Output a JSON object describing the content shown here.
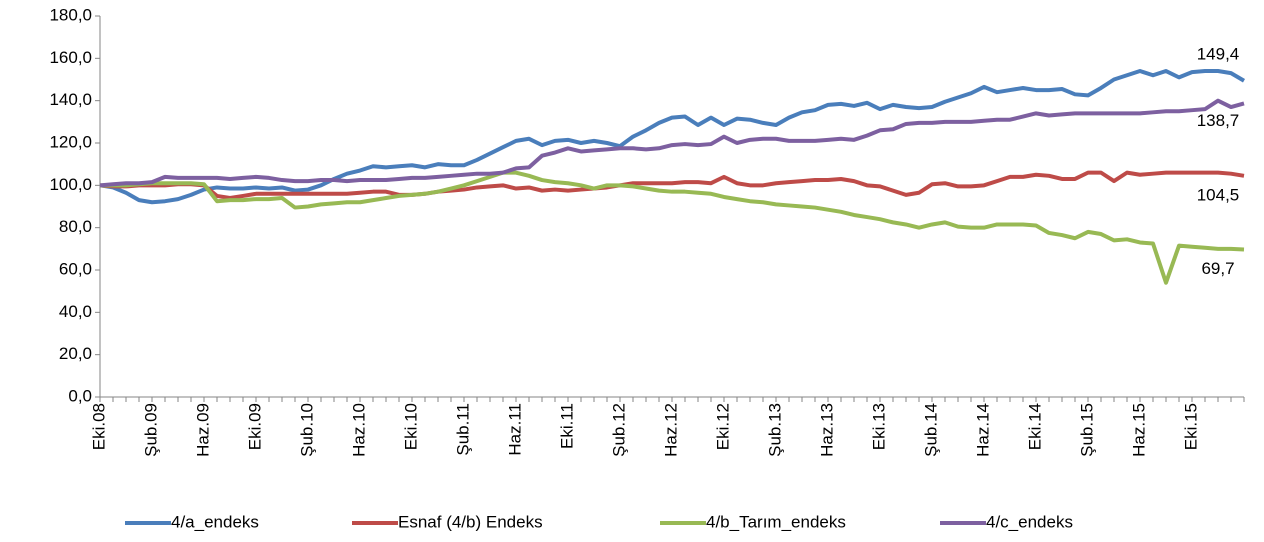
{
  "chart_data": {
    "type": "line",
    "categories": [
      "Eki.08",
      null,
      null,
      null,
      "Şub.09",
      null,
      null,
      null,
      "Haz.09",
      null,
      null,
      null,
      "Eki.09",
      null,
      null,
      null,
      "Şub.10",
      null,
      null,
      null,
      "Haz.10",
      null,
      null,
      null,
      "Eki.10",
      null,
      null,
      null,
      "Şub.11",
      null,
      null,
      null,
      "Haz.11",
      null,
      null,
      null,
      "Eki.11",
      null,
      null,
      null,
      "Şub.12",
      null,
      null,
      null,
      "Haz.12",
      null,
      null,
      null,
      "Eki.12",
      null,
      null,
      null,
      "Şub.13",
      null,
      null,
      null,
      "Haz.13",
      null,
      null,
      null,
      "Eki.13",
      null,
      null,
      null,
      "Şub.14",
      null,
      null,
      null,
      "Haz.14",
      null,
      null,
      null,
      "Eki.14",
      null,
      null,
      null,
      "Şub.15",
      null,
      null,
      null,
      "Haz.15",
      null,
      null,
      null,
      "Eki.15",
      null,
      null,
      null,
      null
    ],
    "series": [
      {
        "name": "4/a_endeks",
        "color": "#4a7ebb",
        "values": [
          100,
          99,
          96.5,
          93,
          92,
          92.5,
          93.5,
          95.5,
          98,
          99,
          98.5,
          98.5,
          99,
          98.5,
          99,
          97.5,
          98,
          100,
          103,
          105.5,
          107,
          109,
          108.5,
          109,
          109.5,
          108.5,
          110,
          109.5,
          109.5,
          112,
          115,
          118,
          121,
          122,
          119,
          121,
          121.5,
          120,
          121,
          120,
          118.5,
          123,
          126,
          129.5,
          132,
          132.5,
          128.5,
          132,
          128.5,
          131.5,
          131,
          129.5,
          128.5,
          132,
          134.5,
          135.5,
          138,
          138.5,
          137.5,
          139,
          136,
          138,
          137,
          136.5,
          137,
          139.5,
          141.5,
          143.5,
          146.5,
          144,
          145,
          146,
          145,
          145,
          145.5,
          143,
          142.5,
          146,
          150,
          152,
          154,
          152,
          154,
          151,
          153.5,
          154,
          154,
          153,
          149.4
        ],
        "value_labels": [
          null,
          null,
          null,
          null,
          null,
          null,
          null,
          null,
          null,
          null,
          null,
          null,
          null,
          null,
          null,
          null,
          null,
          null,
          null,
          null,
          null,
          null,
          null,
          null,
          null,
          null,
          null,
          null,
          null,
          null,
          null,
          null,
          null,
          null,
          null,
          null,
          null,
          null,
          null,
          null,
          null,
          null,
          null,
          null,
          null,
          null,
          null,
          null,
          null,
          null,
          null,
          null,
          null,
          null,
          null,
          null,
          null,
          null,
          null,
          null,
          null,
          null,
          null,
          null,
          null,
          null,
          null,
          null,
          null,
          null,
          null,
          null,
          null,
          null,
          null,
          null,
          null,
          null,
          null,
          null,
          null,
          null,
          null,
          null,
          null,
          null,
          null,
          null,
          "149,4"
        ]
      },
      {
        "name": "Esnaf (4/b) Endeks",
        "color": "#be4b48",
        "values": [
          100,
          99.5,
          99.5,
          100,
          100,
          100,
          100.5,
          100.5,
          100,
          95,
          94,
          95,
          96,
          96,
          96,
          96,
          96,
          96,
          96,
          96,
          96.5,
          97,
          97,
          95.5,
          95.5,
          96,
          97,
          97.5,
          98,
          99,
          99.5,
          100,
          98.5,
          99,
          97.5,
          98,
          97.5,
          98,
          98.5,
          99,
          100,
          101,
          101,
          101,
          101,
          101.5,
          101.5,
          101,
          104,
          101,
          100,
          100,
          101,
          101.5,
          102,
          102.5,
          102.5,
          103,
          102,
          100,
          99.5,
          97.5,
          95.5,
          96.5,
          100.5,
          101,
          99.5,
          99.5,
          100,
          102,
          104,
          104,
          105,
          104.5,
          103,
          103,
          106,
          106,
          102,
          106,
          105,
          105.5,
          106,
          106,
          106,
          106,
          106,
          105.5,
          104.5
        ],
        "value_labels": [
          null,
          null,
          null,
          null,
          null,
          null,
          null,
          null,
          null,
          null,
          null,
          null,
          null,
          null,
          null,
          null,
          null,
          null,
          null,
          null,
          null,
          null,
          null,
          null,
          null,
          null,
          null,
          null,
          null,
          null,
          null,
          null,
          null,
          null,
          null,
          null,
          null,
          null,
          null,
          null,
          null,
          null,
          null,
          null,
          null,
          null,
          null,
          null,
          null,
          null,
          null,
          null,
          null,
          null,
          null,
          null,
          null,
          null,
          null,
          null,
          null,
          null,
          null,
          null,
          null,
          null,
          null,
          null,
          null,
          null,
          null,
          null,
          null,
          null,
          null,
          null,
          null,
          null,
          null,
          null,
          null,
          null,
          null,
          null,
          null,
          null,
          null,
          null,
          "104,5"
        ]
      },
      {
        "name": "4/b_Tarım_endeks",
        "color": "#98b954",
        "values": [
          100,
          100,
          100,
          100.5,
          101,
          101,
          101,
          101,
          100.5,
          92.5,
          93,
          93,
          93.5,
          93.5,
          94,
          89.5,
          90,
          91,
          91.5,
          92,
          92,
          93,
          94,
          95,
          95.5,
          96,
          97,
          98.5,
          100,
          102,
          104,
          106,
          106,
          104.5,
          102.5,
          101.5,
          101,
          100,
          98.5,
          100,
          100,
          99.5,
          98.5,
          97.5,
          97,
          97,
          96.5,
          96,
          94.5,
          93.5,
          92.5,
          92,
          91,
          90.5,
          90,
          89.5,
          88.5,
          87.5,
          86,
          85,
          84,
          82.5,
          81.5,
          80,
          81.5,
          82.5,
          80.5,
          80,
          80,
          81.5,
          81.5,
          81.5,
          81,
          77.5,
          76.5,
          75,
          78,
          77,
          74,
          74.5,
          73,
          72.5,
          54,
          71.5,
          71,
          70.5,
          70,
          70,
          69.7
        ],
        "value_labels": [
          null,
          null,
          null,
          null,
          null,
          null,
          null,
          null,
          null,
          null,
          null,
          null,
          null,
          null,
          null,
          null,
          null,
          null,
          null,
          null,
          null,
          null,
          null,
          null,
          null,
          null,
          null,
          null,
          null,
          null,
          null,
          null,
          null,
          null,
          null,
          null,
          null,
          null,
          null,
          null,
          null,
          null,
          null,
          null,
          null,
          null,
          null,
          null,
          null,
          null,
          null,
          null,
          null,
          null,
          null,
          null,
          null,
          null,
          null,
          null,
          null,
          null,
          null,
          null,
          null,
          null,
          null,
          null,
          null,
          null,
          null,
          null,
          null,
          null,
          null,
          null,
          null,
          null,
          null,
          null,
          null,
          null,
          null,
          null,
          null,
          null,
          null,
          null,
          "69,7"
        ]
      },
      {
        "name": "4/c_endeks",
        "color": "#7d60a0",
        "values": [
          100,
          100.5,
          101,
          101,
          101.5,
          104,
          103.5,
          103.5,
          103.5,
          103.5,
          103,
          103.5,
          104,
          103.5,
          102.5,
          102,
          102,
          102.5,
          102.5,
          102,
          102.5,
          102.5,
          102.5,
          103,
          103.5,
          103.5,
          104,
          104.5,
          105,
          105.5,
          105.5,
          106,
          108,
          108.5,
          114,
          115.5,
          117.5,
          116,
          116.5,
          117,
          117.5,
          117.5,
          117,
          117.5,
          119,
          119.5,
          119,
          119.5,
          123,
          120,
          121.5,
          122,
          122,
          121,
          121,
          121,
          121.5,
          122,
          121.5,
          123.5,
          126,
          126.5,
          129,
          129.5,
          129.5,
          130,
          130,
          130,
          130.5,
          131,
          131,
          132.5,
          134,
          133,
          133.5,
          134,
          134,
          134,
          134,
          134,
          134,
          134.5,
          135,
          135,
          135.5,
          136,
          140,
          137,
          138.7
        ],
        "value_labels": [
          null,
          null,
          null,
          null,
          null,
          null,
          null,
          null,
          null,
          null,
          null,
          null,
          null,
          null,
          null,
          null,
          null,
          null,
          null,
          null,
          null,
          null,
          null,
          null,
          null,
          null,
          null,
          null,
          null,
          null,
          null,
          null,
          null,
          null,
          null,
          null,
          null,
          null,
          null,
          null,
          null,
          null,
          null,
          null,
          null,
          null,
          null,
          null,
          null,
          null,
          null,
          null,
          null,
          null,
          null,
          null,
          null,
          null,
          null,
          null,
          null,
          null,
          null,
          null,
          null,
          null,
          null,
          null,
          null,
          null,
          null,
          null,
          null,
          null,
          null,
          null,
          null,
          null,
          null,
          null,
          null,
          null,
          null,
          null,
          null,
          null,
          null,
          null,
          "138,7"
        ]
      }
    ],
    "ylim": [
      0,
      180
    ],
    "yticks": [
      {
        "value": 0,
        "label": "0,0"
      },
      {
        "value": 20,
        "label": "20,0"
      },
      {
        "value": 40,
        "label": "40,0"
      },
      {
        "value": 60,
        "label": "60,0"
      },
      {
        "value": 80,
        "label": "80,0"
      },
      {
        "value": 100,
        "label": "100,0"
      },
      {
        "value": 120,
        "label": "120,0"
      },
      {
        "value": 140,
        "label": "140,0"
      },
      {
        "value": 160,
        "label": "160,0"
      },
      {
        "value": 180,
        "label": "180,0"
      }
    ],
    "grid": false,
    "legend": "bottom"
  }
}
